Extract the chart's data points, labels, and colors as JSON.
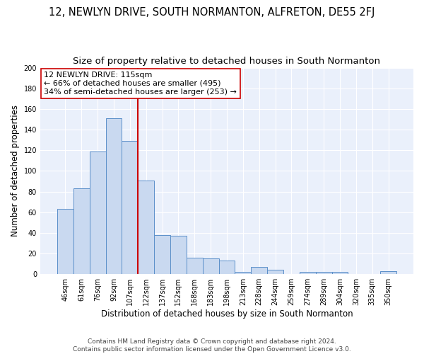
{
  "title": "12, NEWLYN DRIVE, SOUTH NORMANTON, ALFRETON, DE55 2FJ",
  "subtitle": "Size of property relative to detached houses in South Normanton",
  "xlabel": "Distribution of detached houses by size in South Normanton",
  "ylabel": "Number of detached properties",
  "categories": [
    "46sqm",
    "61sqm",
    "76sqm",
    "92sqm",
    "107sqm",
    "122sqm",
    "137sqm",
    "152sqm",
    "168sqm",
    "183sqm",
    "198sqm",
    "213sqm",
    "228sqm",
    "244sqm",
    "259sqm",
    "274sqm",
    "289sqm",
    "304sqm",
    "320sqm",
    "335sqm",
    "350sqm"
  ],
  "values": [
    63,
    83,
    119,
    151,
    129,
    91,
    38,
    37,
    16,
    15,
    13,
    2,
    7,
    4,
    0,
    2,
    2,
    2,
    0,
    0,
    3
  ],
  "bar_color": "#c9d9f0",
  "bar_edge_color": "#5b8fc9",
  "vline_color": "#cc0000",
  "annotation_text": "12 NEWLYN DRIVE: 115sqm\n← 66% of detached houses are smaller (495)\n34% of semi-detached houses are larger (253) →",
  "annotation_box_color": "#ffffff",
  "annotation_box_edge": "#cc0000",
  "ylim": [
    0,
    200
  ],
  "yticks": [
    0,
    20,
    40,
    60,
    80,
    100,
    120,
    140,
    160,
    180,
    200
  ],
  "background_color": "#eaf0fb",
  "footer_text": "Contains HM Land Registry data © Crown copyright and database right 2024.\nContains public sector information licensed under the Open Government Licence v3.0.",
  "title_fontsize": 10.5,
  "subtitle_fontsize": 9.5,
  "axis_label_fontsize": 8.5,
  "tick_fontsize": 7,
  "annotation_fontsize": 8,
  "footer_fontsize": 6.5
}
